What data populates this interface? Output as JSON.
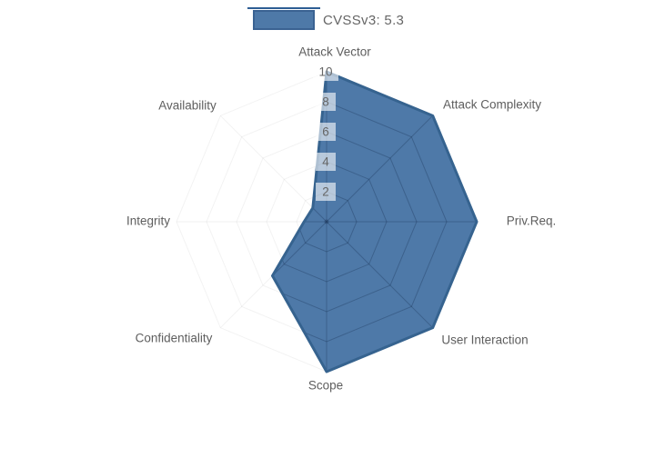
{
  "page": {
    "background": "#ffffff"
  },
  "chart_data": {
    "type": "radar",
    "title": "CVSSv3: 5.3",
    "legend": {
      "label": "CVSSv3: 5.3",
      "position": "top",
      "swatch_color": "#4e79a8"
    },
    "axes": [
      "Attack Vector",
      "Attack Complexity",
      "Priv.Req.",
      "User Interaction",
      "Scope",
      "Confidentiality",
      "Integrity",
      "Availability"
    ],
    "series": [
      {
        "name": "CVSSv3: 5.3",
        "values": [
          10,
          10,
          10,
          10,
          10,
          5.1,
          1.5,
          1.3
        ]
      }
    ],
    "radial_ticks": [
      2,
      4,
      6,
      8,
      10
    ],
    "scale": {
      "min": 0,
      "max": 10,
      "tick_step": 2
    },
    "grid": true,
    "colors": {
      "fill": "#4e79a8",
      "stroke": "#36638f",
      "grid_inner": "rgba(15,35,70,0.28)",
      "grid_faint": "rgba(0,0,0,0.05)",
      "axis_label": "#5e5e5e",
      "tick_text": "#666666",
      "tick_bg": "rgba(255,255,255,0.6)",
      "legend_text": "#666666"
    }
  }
}
